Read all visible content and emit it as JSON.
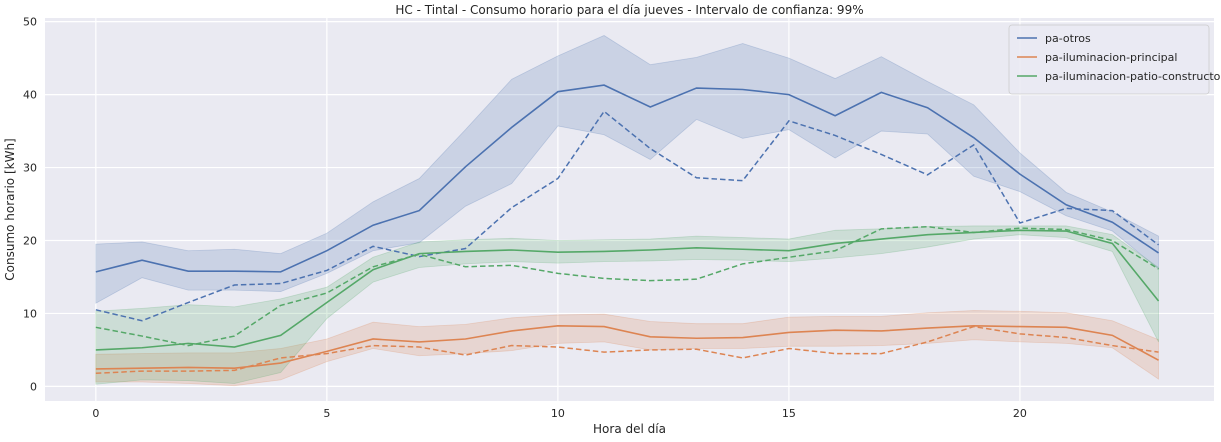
{
  "chart_data": {
    "type": "line",
    "title": "HC - Tintal - Consumo horario para el día jueves - Intervalo de confianza: 99%",
    "xlabel": "Hora del día",
    "ylabel": "Consumo horario [kWh]",
    "xlim": [
      -1.1,
      24.2
    ],
    "ylim": [
      -2,
      50.5
    ],
    "xticks": [
      0,
      5,
      10,
      15,
      20
    ],
    "yticks": [
      0,
      10,
      20,
      30,
      40,
      50
    ],
    "grid": true,
    "legend_position": "top-right",
    "x": [
      0,
      1,
      2,
      3,
      4,
      5,
      6,
      7,
      8,
      9,
      10,
      11,
      12,
      13,
      14,
      15,
      16,
      17,
      18,
      19,
      20,
      21,
      22,
      23
    ],
    "series": [
      {
        "name": "pa-otros",
        "color": "#4c72b0",
        "mean": [
          15.7,
          17.3,
          15.8,
          15.8,
          15.7,
          18.6,
          22.1,
          24.1,
          30.1,
          35.5,
          40.4,
          41.3,
          38.3,
          40.9,
          40.7,
          40.0,
          37.1,
          40.3,
          38.2,
          34.1,
          29.1,
          24.9,
          22.5,
          18.3
        ],
        "ci_lower": [
          11.4,
          14.9,
          13.2,
          13.2,
          13.0,
          15.5,
          18.6,
          19.7,
          24.7,
          27.8,
          35.7,
          34.5,
          31.1,
          36.6,
          34.0,
          35.2,
          31.3,
          35.0,
          34.6,
          28.8,
          26.7,
          23.4,
          21.3,
          16.1
        ],
        "ci_upper": [
          19.5,
          19.8,
          18.6,
          18.8,
          18.2,
          21.0,
          25.3,
          28.5,
          35.2,
          42.1,
          45.3,
          48.1,
          44.1,
          45.1,
          47.0,
          45.0,
          42.2,
          45.2,
          41.8,
          38.6,
          32.0,
          26.6,
          23.9,
          20.6
        ],
        "reference": [
          10.5,
          9.0,
          11.5,
          13.9,
          14.1,
          15.9,
          19.2,
          17.8,
          18.9,
          24.5,
          28.5,
          37.7,
          32.6,
          28.6,
          28.2,
          36.4,
          34.4,
          31.8,
          29.0,
          33.1,
          22.4,
          24.4,
          24.1,
          19.4
        ]
      },
      {
        "name": "pa-iluminacion-principal",
        "color": "#dd8452",
        "mean": [
          2.4,
          2.5,
          2.6,
          2.5,
          3.2,
          4.8,
          6.5,
          6.1,
          6.5,
          7.6,
          8.3,
          8.2,
          6.8,
          6.6,
          6.7,
          7.4,
          7.7,
          7.6,
          8.0,
          8.3,
          8.2,
          8.1,
          7.0,
          3.6
        ],
        "ci_lower": [
          0.6,
          0.6,
          0.4,
          0.1,
          0.9,
          3.4,
          5.2,
          4.2,
          4.5,
          4.9,
          5.9,
          6.1,
          5.0,
          5.2,
          5.2,
          5.5,
          5.5,
          5.6,
          5.9,
          6.4,
          6.1,
          5.9,
          5.3,
          1.0
        ],
        "ci_upper": [
          4.4,
          4.5,
          4.6,
          4.6,
          5.2,
          6.5,
          8.8,
          8.2,
          8.5,
          9.4,
          9.8,
          9.9,
          8.9,
          8.6,
          8.6,
          9.5,
          9.6,
          9.6,
          10.1,
          10.4,
          10.3,
          10.1,
          9.0,
          6.4
        ],
        "reference": [
          1.8,
          2.1,
          2.1,
          2.2,
          3.9,
          4.5,
          5.6,
          5.4,
          4.3,
          5.6,
          5.4,
          4.7,
          5.0,
          5.1,
          3.9,
          5.2,
          4.5,
          4.5,
          6.1,
          8.2,
          7.2,
          6.7,
          5.6,
          4.7
        ]
      },
      {
        "name": "pa-iluminacion-patio-constructor",
        "color": "#55a868",
        "mean": [
          5.0,
          5.3,
          5.9,
          5.4,
          7.0,
          11.5,
          16.0,
          18.2,
          18.5,
          18.7,
          18.4,
          18.5,
          18.7,
          19.0,
          18.8,
          18.6,
          19.6,
          20.2,
          20.8,
          21.1,
          21.4,
          21.3,
          19.6,
          11.7
        ],
        "ci_lower": [
          0.3,
          0.9,
          0.8,
          0.4,
          1.9,
          9.3,
          14.3,
          16.3,
          16.8,
          17.1,
          16.9,
          17.1,
          17.2,
          17.4,
          17.3,
          17.1,
          17.6,
          18.2,
          19.1,
          20.2,
          20.8,
          20.4,
          18.5,
          6.1
        ],
        "ci_upper": [
          10.3,
          10.7,
          11.2,
          10.9,
          12.0,
          13.6,
          17.7,
          19.8,
          20.1,
          20.3,
          20.0,
          20.1,
          20.2,
          20.6,
          20.4,
          20.2,
          21.4,
          21.6,
          21.9,
          22.0,
          22.0,
          22.0,
          20.8,
          16.3
        ],
        "reference": [
          8.1,
          6.9,
          5.6,
          6.9,
          11.1,
          12.8,
          16.4,
          18.1,
          16.4,
          16.6,
          15.5,
          14.8,
          14.5,
          14.7,
          16.8,
          17.7,
          18.6,
          21.6,
          21.9,
          21.1,
          21.7,
          21.5,
          20.0,
          16.1
        ]
      }
    ]
  }
}
